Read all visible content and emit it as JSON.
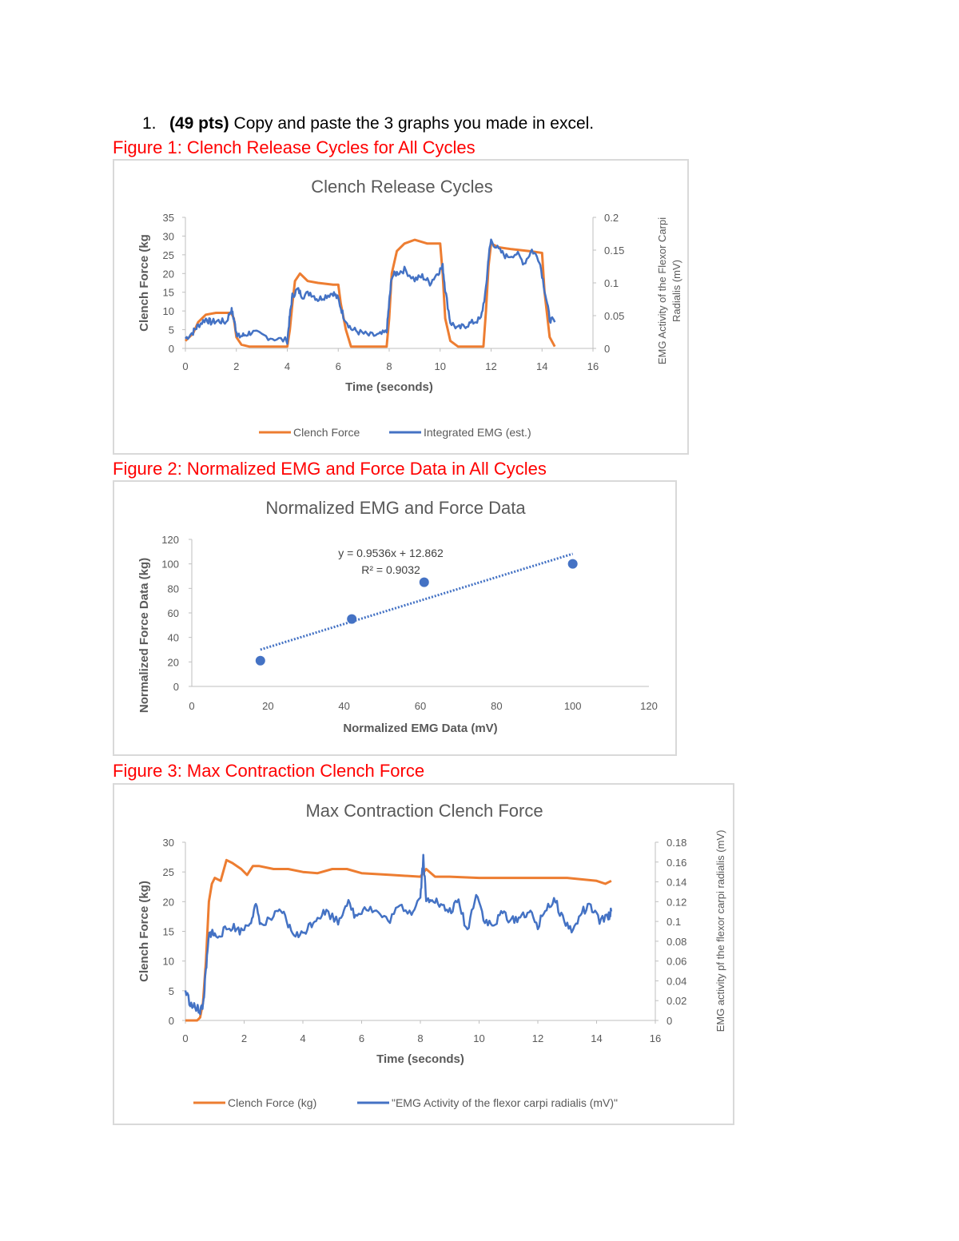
{
  "question": {
    "number": "1.",
    "points": "(49 pts)",
    "text": " Copy and paste the 3 graphs you made in excel."
  },
  "captions": {
    "fig1": "Figure 1: Clench Release Cycles for All Cycles",
    "fig2": "Figure 2: Normalized EMG and Force Data in All Cycles",
    "fig3": "Figure 3: Max Contraction Clench Force"
  },
  "colors": {
    "force": "#ed7d31",
    "emg": "#4472c4",
    "axis": "#bfbfbf",
    "text": "#595959",
    "caption": "#ff0000"
  },
  "chart_data": [
    {
      "type": "line",
      "title": "Clench Release Cycles",
      "xlabel": "Time (seconds)",
      "ylabel": "Clench Force (kg",
      "y2label_line1": "EMG Activity of the Flexor Carpi",
      "y2label_line2": "Radialis (mV)",
      "xlim": [
        0,
        16
      ],
      "ylim": [
        0,
        35
      ],
      "y2lim": [
        0,
        0.2
      ],
      "xticks": [
        "0",
        "2",
        "4",
        "6",
        "8",
        "10",
        "12",
        "14",
        "16"
      ],
      "yticks": [
        "0",
        "5",
        "10",
        "15",
        "20",
        "25",
        "30",
        "35"
      ],
      "y2ticks": [
        "0",
        "0.05",
        "0.1",
        "0.15",
        "0.2"
      ],
      "legend_position": "bottom",
      "series": [
        {
          "name": "Clench Force",
          "axis": "left",
          "x": [
            0,
            0.3,
            0.5,
            0.8,
            1.2,
            1.8,
            1.9,
            2.0,
            2.2,
            2.5,
            3.5,
            4.0,
            4.1,
            4.2,
            4.3,
            4.5,
            4.8,
            5.2,
            5.8,
            6.0,
            6.1,
            6.3,
            6.5,
            7.5,
            7.9,
            8.0,
            8.1,
            8.3,
            8.6,
            9.0,
            9.5,
            10.0,
            10.1,
            10.2,
            10.4,
            10.7,
            11.5,
            11.7,
            11.8,
            11.9,
            12.0,
            12.3,
            12.8,
            13.5,
            14.0,
            14.1,
            14.3,
            14.5
          ],
          "y": [
            2,
            4,
            7,
            9,
            9.5,
            9.5,
            8,
            3,
            1,
            0.5,
            0.5,
            0.5,
            5,
            12,
            18,
            20,
            18,
            17.5,
            17,
            17,
            12,
            5,
            0.5,
            0.5,
            0.5,
            8,
            20,
            26,
            28,
            29,
            28,
            28,
            20,
            8,
            2,
            0.5,
            0.5,
            0.5,
            10,
            22,
            28,
            27,
            26.5,
            26,
            25.5,
            15,
            3,
            0.5
          ]
        },
        {
          "name": "Integrated EMG (est.)",
          "axis": "right",
          "x": [
            0,
            0.3,
            0.5,
            0.8,
            1.0,
            1.3,
            1.6,
            1.8,
            1.9,
            2.0,
            2.1,
            2.3,
            2.6,
            3.0,
            3.5,
            4.0,
            4.1,
            4.2,
            4.4,
            4.6,
            4.9,
            5.2,
            5.5,
            5.8,
            6.0,
            6.2,
            6.5,
            6.8,
            7.2,
            7.6,
            7.9,
            8.0,
            8.1,
            8.3,
            8.6,
            9.0,
            9.3,
            9.6,
            9.9,
            10.1,
            10.2,
            10.4,
            10.7,
            11.0,
            11.3,
            11.6,
            11.8,
            11.9,
            12.0,
            12.3,
            12.6,
            13.0,
            13.3,
            13.6,
            13.9,
            14.1,
            14.3,
            14.5
          ],
          "y": [
            0.015,
            0.025,
            0.035,
            0.045,
            0.04,
            0.042,
            0.04,
            0.06,
            0.045,
            0.025,
            0.018,
            0.02,
            0.025,
            0.02,
            0.015,
            0.012,
            0.05,
            0.08,
            0.09,
            0.08,
            0.085,
            0.075,
            0.08,
            0.085,
            0.075,
            0.05,
            0.03,
            0.025,
            0.02,
            0.02,
            0.025,
            0.07,
            0.11,
            0.115,
            0.12,
            0.105,
            0.11,
            0.1,
            0.115,
            0.125,
            0.09,
            0.04,
            0.03,
            0.035,
            0.04,
            0.045,
            0.09,
            0.14,
            0.165,
            0.15,
            0.14,
            0.145,
            0.13,
            0.15,
            0.135,
            0.09,
            0.045,
            0.04
          ]
        }
      ]
    },
    {
      "type": "scatter",
      "title": "Normalized EMG and Force Data",
      "xlabel": "Normalized EMG Data (mV)",
      "ylabel": "Normalized Force Data (kg)",
      "xlim": [
        0,
        120
      ],
      "ylim": [
        0,
        120
      ],
      "xticks": [
        "0",
        "20",
        "40",
        "60",
        "80",
        "100",
        "120"
      ],
      "yticks": [
        "0",
        "20",
        "40",
        "60",
        "80",
        "100",
        "120"
      ],
      "points": [
        {
          "x": 18,
          "y": 21
        },
        {
          "x": 42,
          "y": 55
        },
        {
          "x": 61,
          "y": 85
        },
        {
          "x": 100,
          "y": 100
        }
      ],
      "trendline": {
        "slope": 0.9536,
        "intercept": 12.862,
        "x_range": [
          18,
          100
        ]
      },
      "equation": "y = 0.9536x + 12.862",
      "r_squared": "R² = 0.9032"
    },
    {
      "type": "line",
      "title": "Max Contraction Clench Force",
      "xlabel": "Time (seconds)",
      "ylabel": "Clench Force (kg)",
      "y2label": "EMG activity pf the flexor carpi radialis (mV)",
      "xlim": [
        0,
        16
      ],
      "ylim": [
        0,
        30
      ],
      "y2lim": [
        0,
        0.18
      ],
      "xticks": [
        "0",
        "2",
        "4",
        "6",
        "8",
        "10",
        "12",
        "14",
        "16"
      ],
      "yticks": [
        "0",
        "5",
        "10",
        "15",
        "20",
        "25",
        "30"
      ],
      "y2ticks": [
        "0",
        "0.02",
        "0.04",
        "0.06",
        "0.08",
        "0.1",
        "0.12",
        "0.14",
        "0.16",
        "0.18"
      ],
      "legend_position": "bottom",
      "series": [
        {
          "name": "Clench Force (kg)",
          "axis": "left",
          "x": [
            0,
            0.4,
            0.5,
            0.6,
            0.7,
            0.8,
            0.9,
            1.0,
            1.2,
            1.4,
            1.6,
            1.9,
            2.1,
            2.3,
            2.5,
            3.0,
            3.5,
            4.0,
            4.5,
            5.0,
            5.5,
            6.0,
            7.0,
            8.0,
            8.2,
            8.5,
            9.0,
            10.0,
            11.0,
            12.0,
            13.0,
            14.0,
            14.3,
            14.5
          ],
          "y": [
            0,
            0,
            0.5,
            3,
            10,
            20,
            23,
            24,
            23.5,
            27,
            26.5,
            25.5,
            24.5,
            26,
            26,
            25.5,
            25.5,
            25,
            24.8,
            25.5,
            25.5,
            24.8,
            24.5,
            24.2,
            25.5,
            24.2,
            24.2,
            24,
            24,
            24,
            24,
            23.5,
            23,
            23.5
          ]
        },
        {
          "name": "\"EMG Activity of the flexor carpi radialis (mV)\"",
          "axis": "right",
          "x": [
            0,
            0.2,
            0.4,
            0.5,
            0.6,
            0.7,
            0.8,
            0.9,
            1.0,
            1.3,
            1.6,
            1.9,
            2.2,
            2.4,
            2.6,
            3.0,
            3.3,
            3.6,
            3.9,
            4.2,
            4.5,
            4.8,
            5.2,
            5.5,
            5.8,
            6.1,
            6.5,
            6.9,
            7.3,
            7.7,
            8.0,
            8.1,
            8.2,
            8.4,
            8.7,
            9.0,
            9.3,
            9.6,
            9.9,
            10.2,
            10.5,
            10.8,
            11.1,
            11.4,
            11.7,
            12.0,
            12.3,
            12.6,
            12.9,
            13.2,
            13.5,
            13.8,
            14.1,
            14.4,
            14.5
          ],
          "y": [
            0.03,
            0.015,
            0.012,
            0.01,
            0.015,
            0.05,
            0.085,
            0.09,
            0.085,
            0.09,
            0.095,
            0.09,
            0.1,
            0.115,
            0.095,
            0.105,
            0.11,
            0.09,
            0.085,
            0.095,
            0.105,
            0.11,
            0.1,
            0.12,
            0.105,
            0.115,
            0.11,
            0.1,
            0.115,
            0.11,
            0.125,
            0.165,
            0.12,
            0.125,
            0.115,
            0.11,
            0.12,
            0.09,
            0.13,
            0.1,
            0.095,
            0.11,
            0.1,
            0.105,
            0.11,
            0.095,
            0.115,
            0.12,
            0.1,
            0.09,
            0.11,
            0.115,
            0.1,
            0.105,
            0.11
          ]
        }
      ]
    }
  ]
}
